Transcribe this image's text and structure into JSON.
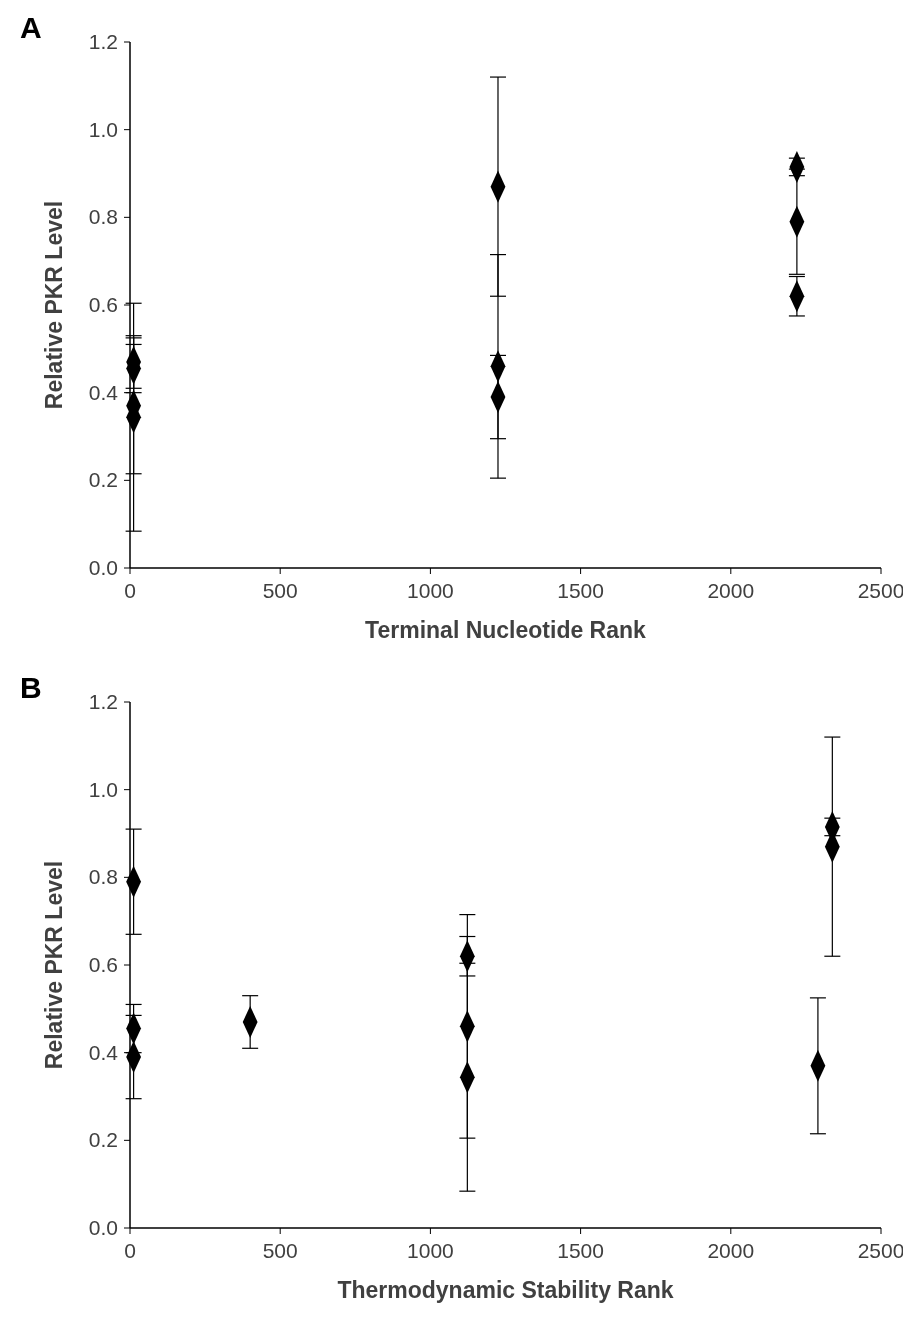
{
  "chart_data": [
    {
      "type": "scatter",
      "annotations": [
        "A"
      ],
      "xlabel": "Terminal Nucleotide Rank",
      "ylabel": "Relative PKR Level",
      "xlim": [
        0,
        2500
      ],
      "xticks": [
        0,
        500,
        1000,
        1500,
        2000,
        2500
      ],
      "ylim": [
        0,
        1.2
      ],
      "yticks": [
        {
          "value": 0,
          "label": "0.0"
        },
        {
          "value": 0.2,
          "label": "0.2"
        },
        {
          "value": 0.4,
          "label": "0.4"
        },
        {
          "value": 0.6,
          "label": "0.6"
        },
        {
          "value": 0.8,
          "label": "0.8"
        },
        {
          "value": 1,
          "label": "1.0"
        },
        {
          "value": 1.2,
          "label": "1.2"
        }
      ],
      "grid": false,
      "marker": "diamond",
      "series": [
        {
          "color": "#000000",
          "x": [
            12,
            12,
            12,
            12,
            1225,
            1225,
            1225,
            2220,
            2220,
            2220
          ],
          "values": [
            0.47,
            0.455,
            0.37,
            0.344,
            0.87,
            0.46,
            0.39,
            0.915,
            0.79,
            0.62
          ],
          "errors": [
            0.06,
            0.055,
            0.155,
            0.26,
            0.25,
            0.255,
            0.095,
            0.02,
            0.12,
            0.045
          ]
        }
      ]
    },
    {
      "type": "scatter",
      "annotations": [
        "B"
      ],
      "xlabel": "Thermodynamic Stability Rank",
      "ylabel": "Relative PKR Level",
      "xlim": [
        0,
        2500
      ],
      "xticks": [
        0,
        500,
        1000,
        1500,
        2000,
        2500
      ],
      "ylim": [
        0,
        1.2
      ],
      "yticks": [
        {
          "value": 0,
          "label": "0.0"
        },
        {
          "value": 0.2,
          "label": "0.2"
        },
        {
          "value": 0.4,
          "label": "0.4"
        },
        {
          "value": 0.6,
          "label": "0.6"
        },
        {
          "value": 0.8,
          "label": "0.8"
        },
        {
          "value": 1,
          "label": "1.0"
        },
        {
          "value": 1.2,
          "label": "1.2"
        }
      ],
      "grid": false,
      "marker": "diamond",
      "series": [
        {
          "color": "#000000",
          "x": [
            12,
            12,
            12,
            400,
            1123,
            1123,
            1123,
            2290,
            2338,
            2338
          ],
          "values": [
            0.79,
            0.455,
            0.39,
            0.47,
            0.62,
            0.46,
            0.344,
            0.37,
            0.915,
            0.87
          ],
          "errors": [
            0.12,
            0.055,
            0.095,
            0.06,
            0.045,
            0.255,
            0.26,
            0.155,
            0.02,
            0.25
          ]
        }
      ]
    }
  ]
}
